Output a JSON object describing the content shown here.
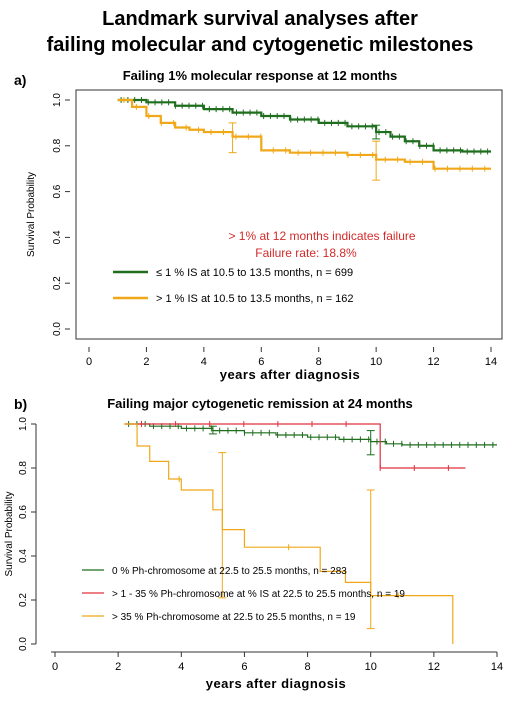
{
  "title_line1": "Landmark survival analyses after",
  "title_line2": "failing molecular and cytogenetic milestones",
  "colors": {
    "green": "#1e6e1e",
    "orange": "#f0a818",
    "red": "#e0303c",
    "annotation": "#d42a2a",
    "axis": "#333333"
  },
  "panel_a": {
    "letter": "a)",
    "title": "Failing 1% molecular response at 12 months",
    "annotation_line1": "> 1% at 12 months indicates failure",
    "annotation_line2": "Failure rate: 18.8%"
  },
  "panel_b": {
    "letter": "b)",
    "title": "Failing major cytogenetic remission at 24 months"
  },
  "chart_data": [
    {
      "type": "line",
      "title": "Failing 1% molecular response at 12 months",
      "xlabel": "years after diagnosis",
      "ylabel": "Survival Probability",
      "xlim": [
        0,
        14
      ],
      "ylim": [
        0,
        1
      ],
      "xticks": [
        "0",
        "2",
        "4",
        "6",
        "8",
        "10",
        "12",
        "14"
      ],
      "yticks": [
        "0.0",
        "0.2",
        "0.4",
        "0.6",
        "0.8",
        "1.0"
      ],
      "legend_position": "lower-left",
      "series": [
        {
          "name": "≤ 1 % IS at 10.5 to 13.5 months, n = 699",
          "color": "green",
          "x": [
            1,
            2,
            3,
            4,
            5,
            6,
            7,
            8,
            9,
            10,
            10.5,
            11,
            11.5,
            12,
            13,
            14
          ],
          "y": [
            1.0,
            0.99,
            0.975,
            0.96,
            0.945,
            0.93,
            0.915,
            0.9,
            0.885,
            0.86,
            0.84,
            0.82,
            0.8,
            0.78,
            0.775,
            0.775
          ],
          "ci": [
            {
              "x": 10,
              "low": 0.83,
              "high": 0.89
            }
          ]
        },
        {
          "name": "> 1 % IS at 10.5 to 13.5 months, n = 162",
          "color": "orange",
          "x": [
            1,
            1.5,
            2,
            2.5,
            3,
            3.5,
            4,
            5,
            6,
            7,
            8,
            9,
            10,
            11,
            12,
            13,
            14
          ],
          "y": [
            1.0,
            0.97,
            0.93,
            0.9,
            0.88,
            0.87,
            0.86,
            0.84,
            0.78,
            0.77,
            0.77,
            0.76,
            0.74,
            0.73,
            0.7,
            0.7,
            0.7
          ],
          "ci": [
            {
              "x": 5,
              "low": 0.77,
              "high": 0.9
            },
            {
              "x": 10,
              "low": 0.65,
              "high": 0.82
            }
          ]
        }
      ]
    },
    {
      "type": "line",
      "title": "Failing major cytogenetic remission at 24 months",
      "xlabel": "years after diagnosis",
      "ylabel": "Survival Probability",
      "xlim": [
        0,
        14
      ],
      "ylim": [
        0,
        1
      ],
      "xticks": [
        "0",
        "2",
        "4",
        "6",
        "8",
        "10",
        "12",
        "14"
      ],
      "yticks": [
        "0.0",
        "0.2",
        "0.4",
        "0.6",
        "0.8",
        "1.0"
      ],
      "legend_position": "lower-left",
      "series": [
        {
          "name": "0 % Ph-chromosome at 22.5 to 25.5 months, n = 283",
          "color": "green",
          "x": [
            2.2,
            3,
            4,
            5,
            6,
            7,
            8,
            9,
            10,
            10.5,
            11,
            12,
            13,
            14
          ],
          "y": [
            1.0,
            0.99,
            0.98,
            0.97,
            0.96,
            0.95,
            0.94,
            0.93,
            0.92,
            0.91,
            0.905,
            0.905,
            0.905,
            0.905
          ],
          "ci": [
            {
              "x": 5,
              "low": 0.955,
              "high": 0.99
            },
            {
              "x": 10,
              "low": 0.86,
              "high": 0.97
            }
          ]
        },
        {
          "name": "> 1 - 35 % Ph-chromosome at % IS at 22.5 to 25.5 months, n = 19",
          "color": "red",
          "x": [
            2.2,
            10.3,
            10.3,
            13
          ],
          "y": [
            1.0,
            1.0,
            0.8,
            0.8
          ],
          "ci": []
        },
        {
          "name": "> 35 % Ph-chromosome at 22.5 to 25.5 months, n = 19",
          "color": "orange",
          "x": [
            2.2,
            2.6,
            3.0,
            3.6,
            4.0,
            5.0,
            5.3,
            6.0,
            8.4,
            9.2,
            10.0,
            12.6
          ],
          "y": [
            1.0,
            0.9,
            0.83,
            0.75,
            0.7,
            0.61,
            0.52,
            0.44,
            0.33,
            0.28,
            0.22,
            0.0
          ],
          "ci": [
            {
              "x": 5.3,
              "low": 0.21,
              "high": 0.87
            },
            {
              "x": 10.0,
              "low": 0.07,
              "high": 0.7
            }
          ]
        }
      ]
    }
  ]
}
